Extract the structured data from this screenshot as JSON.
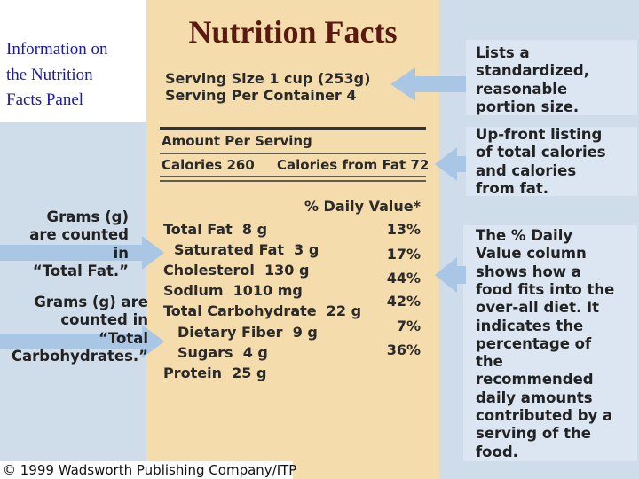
{
  "title_lines": [
    "Information on",
    "the Nutrition",
    "Facts Panel"
  ],
  "label": {
    "heading": "Nutrition Facts",
    "serving_size": "Serving Size 1 cup (253g)",
    "servings_per_container": "Serving Per Container 4",
    "amount_per_serving": "Amount Per Serving",
    "calories": "Calories 260",
    "calories_from_fat": "Calories from Fat 72",
    "daily_value_header": "% Daily Value*",
    "nutrients": [
      "Total Fat  8 g",
      "Saturated Fat  3 g",
      "Cholesterol  130 g",
      "Sodium  1010 mg",
      "Total Carbohydrate  22 g",
      "Dietary Fiber  9 g",
      "Sugars  4 g",
      "Protein  25 g"
    ],
    "daily_values": [
      "13%",
      "17%",
      "44%",
      "42%",
      "7%",
      "36%"
    ]
  },
  "left_notes": [
    {
      "lines": [
        "Grams (g)",
        "are counted",
        "in",
        "“Total Fat.”"
      ]
    },
    {
      "lines": [
        "Grams (g) are",
        "counted in",
        "“Total",
        "Carbohydrates.”"
      ]
    }
  ],
  "right_notes": [
    {
      "lines": [
        "Lists a",
        "standardized,",
        "reasonable",
        "portion size."
      ]
    },
    {
      "lines": [
        "Up-front listing",
        "of total calories",
        "and calories",
        "from fat."
      ]
    },
    {
      "lines": [
        "The % Daily",
        "Value column",
        "shows how a",
        "food fits into the",
        "over-all diet. It",
        "indicates the",
        "percentage of",
        "the",
        "recommended",
        "daily amounts",
        "contributed by a",
        "serving of the",
        "food."
      ]
    }
  ],
  "copyright": "© 1999 Wadsworth Publishing Company/ITP"
}
